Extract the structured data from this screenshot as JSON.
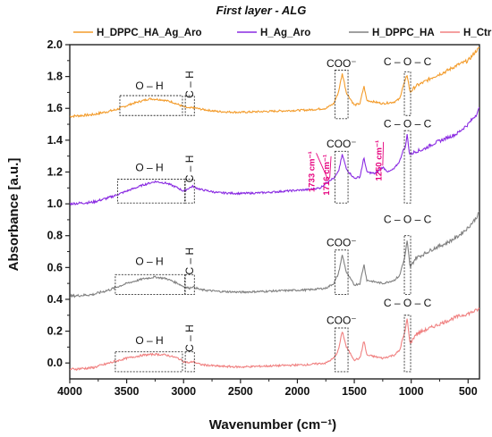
{
  "chart_data": {
    "type": "line",
    "title": "First layer - ALG",
    "xlabel": "Wavenumber (cm⁻¹)",
    "ylabel": "Absorbance [a.u.]",
    "xlim": [
      4000,
      400
    ],
    "ylim": [
      -0.1,
      2.0
    ],
    "x_reversed": true,
    "xticks": [
      "4000",
      "3500",
      "3000",
      "2500",
      "2000",
      "1500",
      "1000",
      "500"
    ],
    "yticks": [
      "0.0",
      "0.2",
      "0.4",
      "0.6",
      "0.8",
      "1.0",
      "1.2",
      "1.4",
      "1.6",
      "1.8",
      "2.0"
    ],
    "legend_position": "top",
    "series": [
      {
        "name": "H_DPPC_HA_Ag_Aro",
        "color": "#f39c2c",
        "points": [
          [
            4000,
            1.55
          ],
          [
            3800,
            1.56
          ],
          [
            3600,
            1.59
          ],
          [
            3450,
            1.63
          ],
          [
            3300,
            1.66
          ],
          [
            3200,
            1.655
          ],
          [
            3100,
            1.64
          ],
          [
            3000,
            1.61
          ],
          [
            2950,
            1.6
          ],
          [
            2920,
            1.605
          ],
          [
            2850,
            1.595
          ],
          [
            2700,
            1.58
          ],
          [
            2500,
            1.575
          ],
          [
            2300,
            1.58
          ],
          [
            2100,
            1.585
          ],
          [
            1900,
            1.59
          ],
          [
            1750,
            1.6
          ],
          [
            1680,
            1.63
          ],
          [
            1640,
            1.7
          ],
          [
            1605,
            1.82
          ],
          [
            1570,
            1.7
          ],
          [
            1500,
            1.62
          ],
          [
            1450,
            1.63
          ],
          [
            1415,
            1.74
          ],
          [
            1390,
            1.65
          ],
          [
            1320,
            1.64
          ],
          [
            1250,
            1.63
          ],
          [
            1150,
            1.64
          ],
          [
            1100,
            1.66
          ],
          [
            1080,
            1.72
          ],
          [
            1060,
            1.76
          ],
          [
            1035,
            1.81
          ],
          [
            1010,
            1.7
          ],
          [
            960,
            1.74
          ],
          [
            900,
            1.76
          ],
          [
            800,
            1.8
          ],
          [
            700,
            1.83
          ],
          [
            600,
            1.87
          ],
          [
            500,
            1.9
          ],
          [
            430,
            1.96
          ],
          [
            400,
            1.98
          ]
        ]
      },
      {
        "name": "H_Ag_Aro",
        "color": "#8a2be2",
        "points": [
          [
            4000,
            1.0
          ],
          [
            3800,
            1.01
          ],
          [
            3650,
            1.04
          ],
          [
            3500,
            1.08
          ],
          [
            3350,
            1.12
          ],
          [
            3250,
            1.14
          ],
          [
            3150,
            1.13
          ],
          [
            3050,
            1.1
          ],
          [
            3000,
            1.08
          ],
          [
            2950,
            1.1
          ],
          [
            2920,
            1.11
          ],
          [
            2850,
            1.09
          ],
          [
            2700,
            1.07
          ],
          [
            2500,
            1.065
          ],
          [
            2300,
            1.07
          ],
          [
            2100,
            1.08
          ],
          [
            1900,
            1.09
          ],
          [
            1800,
            1.1
          ],
          [
            1733,
            1.14
          ],
          [
            1716,
            1.15
          ],
          [
            1680,
            1.16
          ],
          [
            1640,
            1.2
          ],
          [
            1605,
            1.31
          ],
          [
            1570,
            1.22
          ],
          [
            1500,
            1.16
          ],
          [
            1450,
            1.17
          ],
          [
            1415,
            1.29
          ],
          [
            1390,
            1.2
          ],
          [
            1320,
            1.19
          ],
          [
            1250,
            1.23
          ],
          [
            1200,
            1.2
          ],
          [
            1150,
            1.22
          ],
          [
            1100,
            1.27
          ],
          [
            1075,
            1.33
          ],
          [
            1050,
            1.36
          ],
          [
            1035,
            1.44
          ],
          [
            1015,
            1.31
          ],
          [
            960,
            1.33
          ],
          [
            900,
            1.34
          ],
          [
            800,
            1.38
          ],
          [
            700,
            1.41
          ],
          [
            600,
            1.44
          ],
          [
            500,
            1.5
          ],
          [
            430,
            1.56
          ],
          [
            400,
            1.6
          ]
        ]
      },
      {
        "name": "H_DPPC_HA",
        "color": "#808080",
        "points": [
          [
            4000,
            0.42
          ],
          [
            3800,
            0.43
          ],
          [
            3650,
            0.46
          ],
          [
            3500,
            0.5
          ],
          [
            3350,
            0.53
          ],
          [
            3250,
            0.54
          ],
          [
            3150,
            0.53
          ],
          [
            3050,
            0.5
          ],
          [
            3000,
            0.48
          ],
          [
            2950,
            0.47
          ],
          [
            2920,
            0.48
          ],
          [
            2850,
            0.46
          ],
          [
            2700,
            0.45
          ],
          [
            2500,
            0.445
          ],
          [
            2300,
            0.45
          ],
          [
            2100,
            0.455
          ],
          [
            1900,
            0.46
          ],
          [
            1750,
            0.47
          ],
          [
            1680,
            0.5
          ],
          [
            1640,
            0.56
          ],
          [
            1605,
            0.68
          ],
          [
            1570,
            0.57
          ],
          [
            1500,
            0.49
          ],
          [
            1450,
            0.5
          ],
          [
            1415,
            0.62
          ],
          [
            1390,
            0.52
          ],
          [
            1320,
            0.51
          ],
          [
            1250,
            0.5
          ],
          [
            1150,
            0.52
          ],
          [
            1100,
            0.55
          ],
          [
            1080,
            0.61
          ],
          [
            1060,
            0.65
          ],
          [
            1035,
            0.77
          ],
          [
            1010,
            0.6
          ],
          [
            960,
            0.66
          ],
          [
            900,
            0.68
          ],
          [
            800,
            0.72
          ],
          [
            700,
            0.75
          ],
          [
            600,
            0.79
          ],
          [
            500,
            0.85
          ],
          [
            430,
            0.91
          ],
          [
            400,
            0.95
          ]
        ]
      },
      {
        "name": "H_Ctrl",
        "color": "#f08080",
        "points": [
          [
            4000,
            -0.04
          ],
          [
            3800,
            -0.03
          ],
          [
            3650,
            0.0
          ],
          [
            3500,
            0.03
          ],
          [
            3350,
            0.05
          ],
          [
            3250,
            0.055
          ],
          [
            3150,
            0.05
          ],
          [
            3050,
            0.03
          ],
          [
            3000,
            0.01
          ],
          [
            2950,
            0.0
          ],
          [
            2920,
            0.01
          ],
          [
            2850,
            -0.01
          ],
          [
            2700,
            -0.02
          ],
          [
            2500,
            -0.025
          ],
          [
            2300,
            -0.02
          ],
          [
            2100,
            -0.015
          ],
          [
            1900,
            -0.01
          ],
          [
            1750,
            0.0
          ],
          [
            1680,
            0.03
          ],
          [
            1640,
            0.08
          ],
          [
            1605,
            0.2
          ],
          [
            1570,
            0.1
          ],
          [
            1500,
            0.02
          ],
          [
            1450,
            0.03
          ],
          [
            1415,
            0.14
          ],
          [
            1390,
            0.05
          ],
          [
            1320,
            0.04
          ],
          [
            1250,
            0.03
          ],
          [
            1150,
            0.05
          ],
          [
            1100,
            0.08
          ],
          [
            1080,
            0.14
          ],
          [
            1060,
            0.18
          ],
          [
            1035,
            0.28
          ],
          [
            1010,
            0.12
          ],
          [
            960,
            0.18
          ],
          [
            900,
            0.2
          ],
          [
            800,
            0.23
          ],
          [
            700,
            0.26
          ],
          [
            600,
            0.29
          ],
          [
            500,
            0.31
          ],
          [
            430,
            0.33
          ],
          [
            400,
            0.34
          ]
        ]
      }
    ],
    "annotations": {
      "boxes": [
        {
          "label": "O – H",
          "x1": 3560,
          "x2": 3010,
          "y1": 1.555,
          "y2": 1.68,
          "label_x": 3300,
          "label_y": 1.72
        },
        {
          "label": "C – H",
          "x1": 2985,
          "x2": 2905,
          "y1": 1.555,
          "y2": 1.68,
          "label_x": 2945,
          "label_y": 1.75,
          "vertical": true
        },
        {
          "label": "COO⁻",
          "x1": 1670,
          "x2": 1555,
          "y1": 1.535,
          "y2": 1.84,
          "label_x": 1612,
          "label_y": 1.86
        },
        {
          "label": "C – O – C",
          "x1": 1060,
          "x2": 1005,
          "y1": 1.555,
          "y2": 1.83,
          "label_x": 1032,
          "label_y": 1.87
        },
        {
          "label": "O – H",
          "x1": 3580,
          "x2": 2990,
          "y1": 1.005,
          "y2": 1.155,
          "label_x": 3300,
          "label_y": 1.205
        },
        {
          "label": "C – H",
          "x1": 2985,
          "x2": 2905,
          "y1": 1.005,
          "y2": 1.155,
          "label_x": 2945,
          "label_y": 1.22,
          "vertical": true
        },
        {
          "label": "COO⁻",
          "x1": 1670,
          "x2": 1555,
          "y1": 1.005,
          "y2": 1.33,
          "label_x": 1612,
          "label_y": 1.355
        },
        {
          "label": "C – O – C",
          "x1": 1060,
          "x2": 1005,
          "y1": 1.005,
          "y2": 1.46,
          "label_x": 1032,
          "label_y": 1.48
        },
        {
          "label": "O – H",
          "x1": 3600,
          "x2": 2990,
          "y1": 0.43,
          "y2": 0.555,
          "label_x": 3300,
          "label_y": 0.615
        },
        {
          "label": "C – H",
          "x1": 2985,
          "x2": 2905,
          "y1": 0.43,
          "y2": 0.555,
          "label_x": 2945,
          "label_y": 0.64,
          "vertical": true
        },
        {
          "label": "COO⁻",
          "x1": 1670,
          "x2": 1555,
          "y1": 0.43,
          "y2": 0.71,
          "label_x": 1612,
          "label_y": 0.735
        },
        {
          "label": "C – O – C",
          "x1": 1060,
          "x2": 1005,
          "y1": 0.43,
          "y2": 0.8,
          "label_x": 1032,
          "label_y": 0.88
        },
        {
          "label": "O – H",
          "x1": 3600,
          "x2": 3010,
          "y1": -0.055,
          "y2": 0.07,
          "label_x": 3300,
          "label_y": 0.12
        },
        {
          "label": "C – H",
          "x1": 2985,
          "x2": 2905,
          "y1": -0.055,
          "y2": 0.07,
          "label_x": 2945,
          "label_y": 0.155,
          "vertical": true
        },
        {
          "label": "COO⁻",
          "x1": 1670,
          "x2": 1555,
          "y1": -0.055,
          "y2": 0.22,
          "label_x": 1612,
          "label_y": 0.245
        },
        {
          "label": "C – O – C",
          "x1": 1060,
          "x2": 1005,
          "y1": -0.055,
          "y2": 0.3,
          "label_x": 1032,
          "label_y": 0.355
        }
      ],
      "wavenumber_labels": [
        {
          "label": "1733 cm⁻¹",
          "x": 1733,
          "y": 1.155,
          "label_x": 1850,
          "label_y": 1.33
        },
        {
          "label": "1716 cm⁻¹",
          "x": 1716,
          "y": 1.16,
          "label_x": 1720,
          "label_y": 1.31
        },
        {
          "label": "1250 cm⁻¹",
          "x": 1250,
          "y": 1.24,
          "label_x": 1260,
          "label_y": 1.4
        }
      ]
    }
  }
}
